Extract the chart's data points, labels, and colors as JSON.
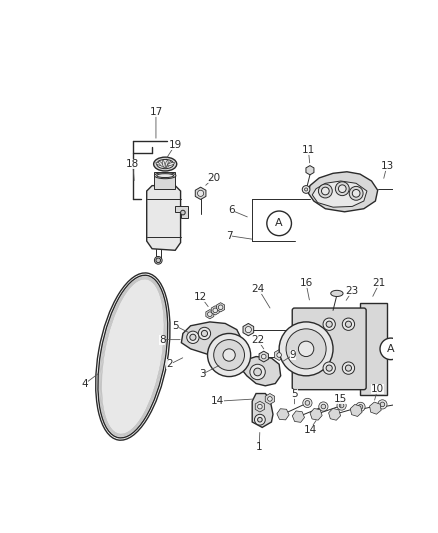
{
  "bg_color": "#ffffff",
  "line_color": "#2a2a2a",
  "label_fontsize": 7.5,
  "fig_width": 4.38,
  "fig_height": 5.33,
  "dpi": 100
}
